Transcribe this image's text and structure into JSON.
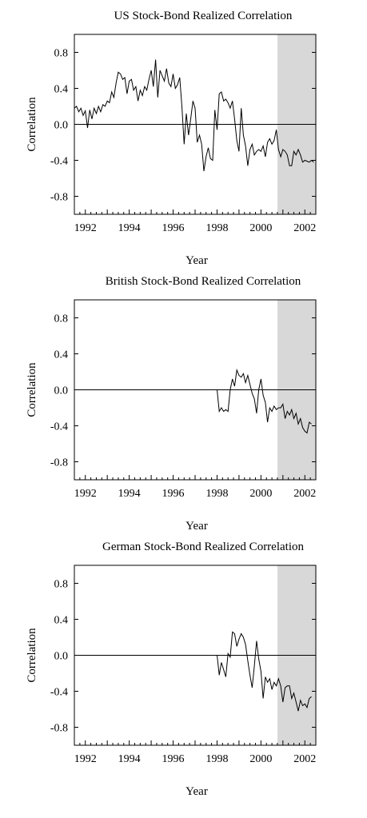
{
  "chart_data": [
    {
      "type": "line",
      "title": "US Stock-Bond Realized Correlation",
      "xlabel": "Year",
      "ylabel": "Correlation",
      "xlim": [
        1991.5,
        2002.5
      ],
      "ylim": [
        -1.0,
        1.0
      ],
      "yticks": [
        0.8,
        0.4,
        0.0,
        -0.4,
        -0.8
      ],
      "ytick_labels": [
        "0.8",
        "0.4",
        "0.0",
        "-0.4",
        "-0.8"
      ],
      "xticks": [
        1992,
        1994,
        1996,
        1998,
        2000,
        2002
      ],
      "xtick_labels": [
        "1992",
        "1994",
        "1996",
        "1998",
        "2000",
        "2002"
      ],
      "shaded_region": [
        2000.75,
        2002.5
      ],
      "zero_line": true,
      "grid": false,
      "series": [
        {
          "x": [
            1991.5,
            1991.6,
            1991.7,
            1991.8,
            1991.9,
            1992.0,
            1992.1,
            1992.2,
            1992.3,
            1992.4,
            1992.5,
            1992.6,
            1992.7,
            1992.8,
            1992.9,
            1993.0,
            1993.1,
            1993.2,
            1993.3,
            1993.4,
            1993.5,
            1993.6,
            1993.7,
            1993.8,
            1993.9,
            1994.0,
            1994.1,
            1994.2,
            1994.3,
            1994.4,
            1994.5,
            1994.6,
            1994.7,
            1994.8,
            1994.9,
            1995.0,
            1995.1,
            1995.2,
            1995.3,
            1995.4,
            1995.5,
            1995.6,
            1995.7,
            1995.8,
            1995.9,
            1996.0,
            1996.1,
            1996.2,
            1996.3,
            1996.4,
            1996.5,
            1996.6,
            1996.7,
            1996.8,
            1996.9,
            1997.0,
            1997.1,
            1997.2,
            1997.3,
            1997.4,
            1997.5,
            1997.6,
            1997.7,
            1997.8,
            1997.9,
            1998.0,
            1998.1,
            1998.2,
            1998.3,
            1998.4,
            1998.5,
            1998.6,
            1998.7,
            1998.8,
            1998.9,
            1999.0,
            1999.1,
            1999.2,
            1999.3,
            1999.4,
            1999.5,
            1999.6,
            1999.7,
            1999.8,
            1999.9,
            2000.0,
            2000.1,
            2000.2,
            2000.3,
            2000.4,
            2000.5,
            2000.6,
            2000.7,
            2000.8,
            2000.9,
            2001.0,
            2001.1,
            2001.2,
            2001.3,
            2001.4,
            2001.5,
            2001.6,
            2001.7,
            2001.8,
            2001.9,
            2002.0,
            2002.1,
            2002.2,
            2002.3,
            2002.4
          ],
          "y": [
            0.18,
            0.2,
            0.14,
            0.18,
            0.1,
            0.15,
            -0.04,
            0.16,
            0.06,
            0.18,
            0.12,
            0.2,
            0.14,
            0.22,
            0.2,
            0.26,
            0.24,
            0.36,
            0.3,
            0.46,
            0.58,
            0.56,
            0.5,
            0.52,
            0.34,
            0.48,
            0.5,
            0.38,
            0.42,
            0.26,
            0.38,
            0.32,
            0.42,
            0.38,
            0.5,
            0.6,
            0.42,
            0.72,
            0.3,
            0.6,
            0.54,
            0.48,
            0.62,
            0.46,
            0.42,
            0.56,
            0.4,
            0.44,
            0.52,
            0.2,
            -0.22,
            0.12,
            -0.12,
            0.06,
            0.26,
            0.18,
            -0.2,
            -0.12,
            -0.22,
            -0.52,
            -0.36,
            -0.26,
            -0.38,
            -0.4,
            0.16,
            -0.06,
            0.34,
            0.36,
            0.26,
            0.28,
            0.24,
            0.18,
            0.26,
            0.06,
            -0.18,
            -0.3,
            0.18,
            -0.12,
            -0.24,
            -0.46,
            -0.28,
            -0.22,
            -0.34,
            -0.3,
            -0.28,
            -0.3,
            -0.24,
            -0.36,
            -0.2,
            -0.16,
            -0.22,
            -0.18,
            -0.06,
            -0.28,
            -0.36,
            -0.28,
            -0.3,
            -0.34,
            -0.46,
            -0.46,
            -0.3,
            -0.34,
            -0.28,
            -0.34,
            -0.42,
            -0.4,
            -0.41,
            -0.42,
            -0.4,
            -0.42
          ]
        }
      ]
    },
    {
      "type": "line",
      "title": "British Stock-Bond Realized Correlation",
      "xlabel": "Year",
      "ylabel": "Correlation",
      "xlim": [
        1991.5,
        2002.5
      ],
      "ylim": [
        -1.0,
        1.0
      ],
      "yticks": [
        0.8,
        0.4,
        0.0,
        -0.4,
        -0.8
      ],
      "ytick_labels": [
        "0.8",
        "0.4",
        "0.0",
        "-0.4",
        "-0.8"
      ],
      "xticks": [
        1992,
        1994,
        1996,
        1998,
        2000,
        2002
      ],
      "xtick_labels": [
        "1992",
        "1994",
        "1996",
        "1998",
        "2000",
        "2002"
      ],
      "shaded_region": [
        2000.75,
        2002.5
      ],
      "zero_line": true,
      "grid": false,
      "series": [
        {
          "x": [
            1998.0,
            1998.1,
            1998.2,
            1998.3,
            1998.4,
            1998.5,
            1998.6,
            1998.7,
            1998.8,
            1998.9,
            1999.0,
            1999.1,
            1999.2,
            1999.3,
            1999.4,
            1999.5,
            1999.6,
            1999.7,
            1999.8,
            1999.9,
            2000.0,
            2000.1,
            2000.2,
            2000.3,
            2000.4,
            2000.5,
            2000.6,
            2000.7,
            2000.8,
            2000.9,
            2001.0,
            2001.1,
            2001.2,
            2001.3,
            2001.4,
            2001.5,
            2001.6,
            2001.7,
            2001.8,
            2001.9,
            2002.0,
            2002.1,
            2002.2,
            2002.3
          ],
          "y": [
            0.0,
            -0.24,
            -0.2,
            -0.24,
            -0.22,
            -0.24,
            0.0,
            0.12,
            0.04,
            0.22,
            0.16,
            0.14,
            0.18,
            0.08,
            0.16,
            0.06,
            -0.04,
            -0.1,
            -0.26,
            0.0,
            0.12,
            -0.06,
            -0.14,
            -0.36,
            -0.2,
            -0.24,
            -0.18,
            -0.22,
            -0.2,
            -0.2,
            -0.16,
            -0.32,
            -0.24,
            -0.28,
            -0.22,
            -0.32,
            -0.26,
            -0.38,
            -0.32,
            -0.42,
            -0.46,
            -0.48,
            -0.36,
            -0.38
          ]
        }
      ]
    },
    {
      "type": "line",
      "title": "German Stock-Bond Realized Correlation",
      "xlabel": "Year",
      "ylabel": "Correlation",
      "xlim": [
        1991.5,
        2002.5
      ],
      "ylim": [
        -1.0,
        1.0
      ],
      "yticks": [
        0.8,
        0.4,
        0.0,
        -0.4,
        -0.8
      ],
      "ytick_labels": [
        "0.8",
        "0.4",
        "0.0",
        "-0.4",
        "-0.8"
      ],
      "xticks": [
        1992,
        1994,
        1996,
        1998,
        2000,
        2002
      ],
      "xtick_labels": [
        "1992",
        "1994",
        "1996",
        "1998",
        "2000",
        "2002"
      ],
      "shaded_region": [
        2000.75,
        2002.5
      ],
      "zero_line": true,
      "grid": false,
      "series": [
        {
          "x": [
            1998.0,
            1998.1,
            1998.2,
            1998.3,
            1998.4,
            1998.5,
            1998.6,
            1998.7,
            1998.8,
            1998.9,
            1999.0,
            1999.1,
            1999.2,
            1999.3,
            1999.4,
            1999.5,
            1999.6,
            1999.7,
            1999.8,
            1999.9,
            2000.0,
            2000.1,
            2000.2,
            2000.3,
            2000.4,
            2000.5,
            2000.6,
            2000.7,
            2000.8,
            2000.9,
            2001.0,
            2001.1,
            2001.2,
            2001.3,
            2001.4,
            2001.5,
            2001.6,
            2001.7,
            2001.8,
            2001.9,
            2002.0,
            2002.1,
            2002.2,
            2002.3
          ],
          "y": [
            0.0,
            -0.22,
            -0.08,
            -0.16,
            -0.24,
            0.02,
            -0.02,
            0.26,
            0.24,
            0.1,
            0.18,
            0.24,
            0.2,
            0.12,
            -0.06,
            -0.22,
            -0.36,
            -0.12,
            0.16,
            -0.04,
            -0.18,
            -0.48,
            -0.24,
            -0.3,
            -0.26,
            -0.38,
            -0.3,
            -0.34,
            -0.26,
            -0.34,
            -0.52,
            -0.36,
            -0.34,
            -0.34,
            -0.48,
            -0.42,
            -0.52,
            -0.62,
            -0.5,
            -0.56,
            -0.54,
            -0.58,
            -0.48,
            -0.46
          ]
        }
      ]
    }
  ]
}
